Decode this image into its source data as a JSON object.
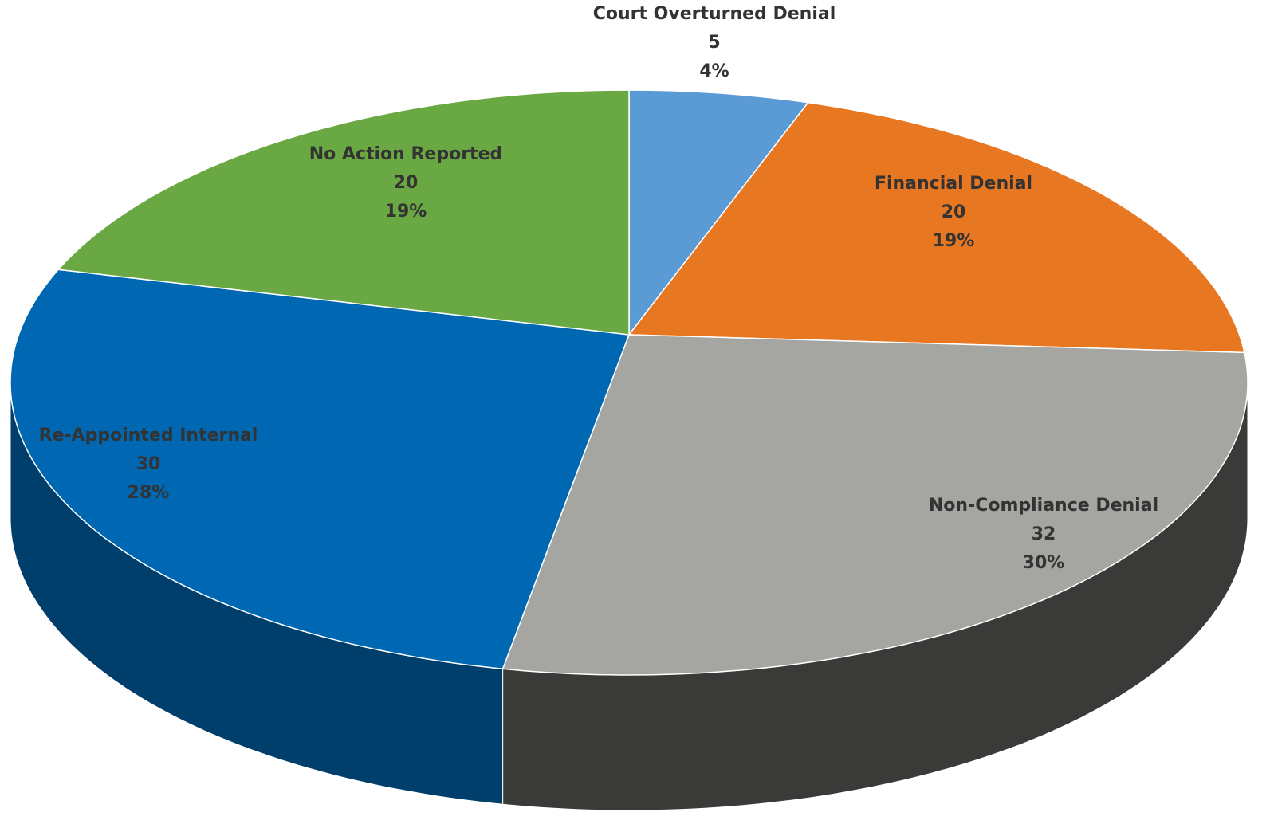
{
  "chart_data": {
    "type": "pie",
    "categories": [
      "Court Overturned Denial",
      "Financial Denial",
      "Non-Compliance Denial",
      "Re-Appointed Internal",
      "No Action Reported"
    ],
    "values": [
      5,
      20,
      32,
      30,
      20
    ],
    "percent_labels": [
      "4%",
      "19%",
      "30%",
      "28%",
      "19%"
    ],
    "colors": [
      "#5b9bd5",
      "#e87722",
      "#a5a5a2",
      "#0068b3",
      "#6aa843"
    ]
  }
}
